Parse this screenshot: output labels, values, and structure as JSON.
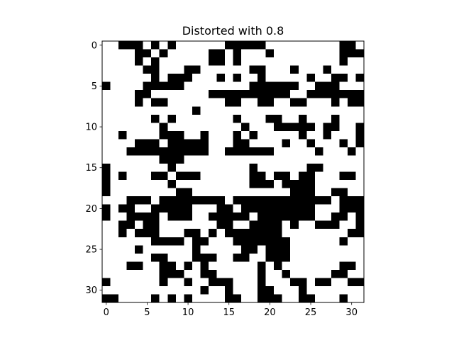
{
  "chart_data": {
    "type": "heatmap",
    "title": "Distorted with 0.8",
    "xlabel": "",
    "ylabel": "",
    "rows": 32,
    "cols": 32,
    "xlim": [
      -0.5,
      31.5
    ],
    "ylim": [
      31.5,
      -0.5
    ],
    "xticks": [
      0,
      5,
      10,
      15,
      20,
      25,
      30
    ],
    "yticks": [
      0,
      5,
      10,
      15,
      20,
      25,
      30
    ],
    "colormap": {
      "0": "#ffffff",
      "1": "#000000"
    },
    "grid": false,
    "matrix": [
      "00111010100000011111000000000110",
      "00001101000001101000100000000111",
      "00001010000001101000000000000100",
      "00000110001100000011000100010000",
      "00000010111000101001000001001101",
      "10000111110000000011111100111000",
      "00001100000001111111111001111111",
      "00001011000000011001100110001011",
      "00000000000100000000000000000000",
      "00000010100000001000110010001000",
      "00000001000000000100011111011001",
      "00100001110010001010000010010001",
      "00001110111110001100001001000101",
      "00011111111110011111100000100010",
      "00000001110000000000000000000000",
      "10000000100000000010000001100000",
      "10100011011100000011011011000110",
      "10000000100000000011101111000000",
      "10000000011000000000000111001100",
      "00011101111111101111111111110111",
      "10110011111000110111111111000111",
      "10011110111001111101111111001101",
      "00110110000000110011110100111001",
      "00101110001101011111110000000011",
      "00000011110110001111111000000100",
      "00001000000100000110111000000000",
      "00000011000111001100111000000000",
      "00011001101010000001010000000110",
      "00000001110011000001001000001100",
      "10000001001001110001000110110011",
      "00000000000010010001100010000000",
      "11000010101000011001110011000100"
    ]
  }
}
